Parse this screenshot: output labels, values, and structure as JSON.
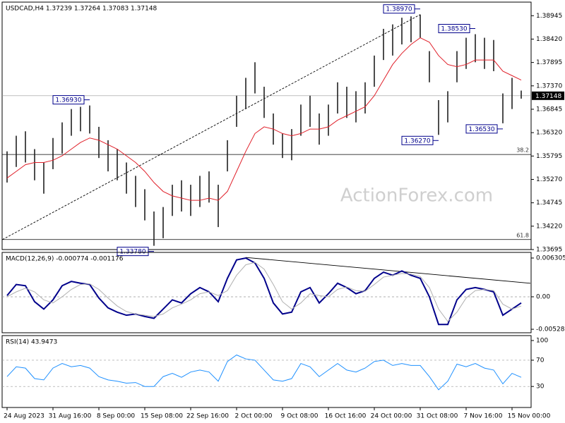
{
  "chart_data": [
    {
      "type": "ohlc",
      "title": "USDCAD,H4  1.37239 1.37264 1.37083 1.37148",
      "high": [
        1.359,
        1.3625,
        1.3635,
        1.3595,
        1.3565,
        1.362,
        1.3655,
        1.3685,
        1.369,
        1.3693,
        1.3645,
        1.3615,
        1.3595,
        1.3565,
        1.3535,
        1.3505,
        1.3455,
        1.3465,
        1.3515,
        1.3525,
        1.3515,
        1.3535,
        1.3545,
        1.3515,
        1.3615,
        1.3715,
        1.3755,
        1.379,
        1.3735,
        1.3675,
        1.363,
        1.364,
        1.3695,
        1.3715,
        1.3675,
        1.3695,
        1.3745,
        1.3735,
        1.3725,
        1.3745,
        1.3805,
        1.3865,
        1.3875,
        1.389,
        1.3893,
        1.3897,
        1.3815,
        1.3705,
        1.3725,
        1.3815,
        1.3845,
        1.3853,
        1.3845,
        1.384,
        1.372,
        1.3755,
        1.37264
      ],
      "low": [
        1.352,
        1.3555,
        1.3565,
        1.3525,
        1.3495,
        1.355,
        1.3585,
        1.3625,
        1.3635,
        1.363,
        1.3575,
        1.3545,
        1.3525,
        1.3495,
        1.3465,
        1.3435,
        1.3378,
        1.3395,
        1.3445,
        1.3455,
        1.3445,
        1.3465,
        1.3475,
        1.342,
        1.3545,
        1.3645,
        1.3685,
        1.372,
        1.3665,
        1.3605,
        1.3575,
        1.357,
        1.3625,
        1.3645,
        1.3605,
        1.3625,
        1.3675,
        1.3665,
        1.3655,
        1.3675,
        1.3735,
        1.3795,
        1.3805,
        1.383,
        1.3835,
        1.3845,
        1.3745,
        1.3627,
        1.3655,
        1.3745,
        1.3775,
        1.379,
        1.3775,
        1.377,
        1.3653,
        1.3685,
        1.37083
      ],
      "ma": {
        "color": "#e0202a",
        "values": [
          1.353,
          1.3545,
          1.356,
          1.3565,
          1.3565,
          1.357,
          1.358,
          1.3595,
          1.361,
          1.362,
          1.3615,
          1.3605,
          1.3595,
          1.358,
          1.3565,
          1.3545,
          1.352,
          1.35,
          1.349,
          1.3485,
          1.348,
          1.348,
          1.3485,
          1.348,
          1.35,
          1.3545,
          1.359,
          1.363,
          1.3645,
          1.364,
          1.363,
          1.3625,
          1.363,
          1.364,
          1.364,
          1.3645,
          1.366,
          1.367,
          1.368,
          1.369,
          1.3715,
          1.375,
          1.3785,
          1.381,
          1.383,
          1.3845,
          1.3835,
          1.3805,
          1.3785,
          1.378,
          1.3785,
          1.3795,
          1.3795,
          1.3795,
          1.377,
          1.376,
          1.375
        ]
      },
      "bar_color": "#202020",
      "ylim": [
        1.33695,
        1.3925
      ],
      "yticks": [
        1.38945,
        {
          "value": 1.3842,
          "label": "1.38420"
        },
        1.37895,
        {
          "value": 1.3737,
          "label": "1.37370"
        },
        1.36845,
        {
          "value": 1.3632,
          "label": "1.36320"
        },
        1.35795,
        {
          "value": 1.3527,
          "label": "1.35270"
        },
        1.34745,
        {
          "value": 1.3422,
          "label": "1.34220"
        },
        1.33695
      ],
      "last_price": {
        "value": 1.37148,
        "label": "1.37148"
      },
      "levels": [
        {
          "value": 1.3583,
          "label": "38.2"
        },
        {
          "value": 1.3392,
          "label": "61.8"
        }
      ],
      "trendline": {
        "from": [
          -0.5,
          1.3392
        ],
        "to": [
          45,
          1.3897
        ]
      },
      "price_labels": [
        {
          "index": 45,
          "value": 1.3897,
          "label": "1.38970",
          "side": "above"
        },
        {
          "index": 9,
          "value": 1.3693,
          "label": "1.36930",
          "side": "above"
        },
        {
          "index": 16,
          "value": 1.3378,
          "label": "1.33780",
          "side": "below"
        },
        {
          "index": 51,
          "value": 1.3853,
          "label": "1.38530",
          "side": "above"
        },
        {
          "index": 47,
          "value": 1.3627,
          "label": "1.36270",
          "side": "below"
        },
        {
          "index": 54,
          "value": 1.3653,
          "label": "1.36530",
          "side": "below"
        }
      ],
      "watermark": "ActionForex.com"
    },
    {
      "type": "line",
      "title": "MACD(12,26,9) -0.000774 -0.001176",
      "series": [
        {
          "color": "#00008b",
          "values": [
            0.0002,
            0.002,
            0.0018,
            -0.0008,
            -0.002,
            -0.0005,
            0.0018,
            0.0025,
            0.0022,
            0.002,
            -0.0002,
            -0.0018,
            -0.0025,
            -0.003,
            -0.0028,
            -0.0032,
            -0.0035,
            -0.002,
            -0.0005,
            -0.001,
            0.0005,
            0.0015,
            0.0008,
            -0.0008,
            0.003,
            0.006,
            0.0063,
            0.0055,
            0.003,
            -0.001,
            -0.0028,
            -0.0025,
            0.0008,
            0.0015,
            -0.001,
            0.0005,
            0.0022,
            0.0015,
            0.0005,
            0.001,
            0.003,
            0.004,
            0.0035,
            0.0042,
            0.0035,
            0.003,
            0.0,
            -0.0045,
            -0.0045,
            -0.0005,
            0.0012,
            0.0015,
            0.0012,
            0.0008,
            -0.003,
            -0.002,
            -0.001
          ]
        },
        {
          "color": "#b0b0b0",
          "values": [
            0.0,
            0.0008,
            0.0014,
            0.0008,
            -0.0005,
            -0.001,
            0.0,
            0.0012,
            0.002,
            0.0021,
            0.0012,
            -0.0002,
            -0.0015,
            -0.0024,
            -0.0028,
            -0.003,
            -0.0032,
            -0.0028,
            -0.0018,
            -0.0012,
            -0.0005,
            0.0005,
            0.0008,
            0.0002,
            0.001,
            0.0035,
            0.0052,
            0.0056,
            0.0045,
            0.002,
            -0.0008,
            -0.002,
            -0.001,
            0.0005,
            0.0002,
            0.0,
            0.0012,
            0.0016,
            0.001,
            0.0009,
            0.002,
            0.0032,
            0.0035,
            0.0038,
            0.0037,
            0.0033,
            0.0015,
            -0.002,
            -0.004,
            -0.0025,
            -0.0002,
            0.001,
            0.0012,
            0.001,
            -0.0012,
            -0.002,
            -0.0015
          ]
        }
      ],
      "ylim": [
        -0.00585,
        0.00722
      ],
      "yticks": [
        0.006305,
        {
          "value": 0,
          "label": "0.00"
        },
        -0.005283
      ],
      "levels": [
        0
      ],
      "trendline": {
        "from": [
          26,
          0.0064
        ],
        "to": [
          57,
          0.0022
        ]
      }
    },
    {
      "type": "line",
      "title": "RSI(14) 43.9473",
      "series": [
        {
          "color": "#1e90ff",
          "values": [
            45,
            60,
            58,
            42,
            40,
            58,
            65,
            60,
            62,
            58,
            45,
            40,
            38,
            35,
            36,
            30,
            30,
            45,
            50,
            44,
            52,
            55,
            52,
            38,
            68,
            78,
            72,
            70,
            55,
            40,
            38,
            42,
            65,
            60,
            45,
            55,
            65,
            55,
            52,
            58,
            68,
            70,
            62,
            65,
            62,
            62,
            45,
            25,
            38,
            64,
            60,
            65,
            58,
            55,
            34,
            50,
            43.9473
          ]
        }
      ],
      "ylim": [
        -2,
        107.5
      ],
      "yticks": [
        100,
        70,
        30
      ],
      "levels": [
        70,
        30
      ],
      "categories": [
        "24 Aug 2023",
        null,
        null,
        null,
        null,
        "31 Aug 16:00",
        null,
        null,
        null,
        null,
        "8 Sep 00:00",
        null,
        null,
        null,
        null,
        "15 Sep 08:00",
        null,
        null,
        null,
        null,
        "22 Sep 16:00",
        null,
        null,
        null,
        null,
        "2 Oct 00:00",
        null,
        null,
        null,
        null,
        "9 Oct 08:00",
        null,
        null,
        null,
        null,
        "16 Oct 16:00",
        null,
        null,
        null,
        null,
        "24 Oct 00:00",
        null,
        null,
        null,
        null,
        "31 Oct 08:00",
        null,
        null,
        null,
        null,
        "7 Nov 16:00",
        null,
        null,
        null,
        null,
        "15 Nov 00:00",
        null
      ]
    }
  ]
}
